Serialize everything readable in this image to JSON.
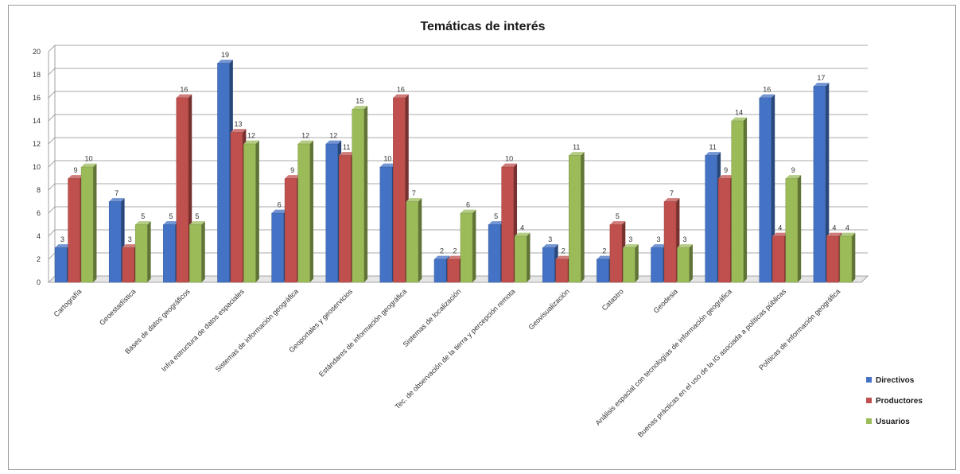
{
  "chart_data": {
    "type": "bar",
    "title": "Temáticas de interés",
    "categories": [
      "Cartografía",
      "Geoestadística",
      "Bases de datos geográficos",
      "Infra estructura de datos espaciales",
      "Sistemas de información geográfica",
      "Geoportales y geoservicios",
      "Estándares de información geográfica",
      "Sistemas de localización",
      "Tec. de observación de la tierra y percepción remota",
      "Geovisualización",
      "Catastro",
      "Geodesia",
      "Análisis espacial con tecnologías de información geográfica",
      "Buenas prácticas en el uso de la IG asociada a políticas públicas",
      "Políticas de información geográfica"
    ],
    "series": [
      {
        "name": "Directivos",
        "color": "#4472C4",
        "values": [
          3,
          7,
          5,
          19,
          6,
          12,
          10,
          2,
          5,
          3,
          2,
          3,
          11,
          16,
          17
        ]
      },
      {
        "name": "Productores",
        "color": "#C0504D",
        "values": [
          9,
          3,
          16,
          13,
          9,
          11,
          16,
          2,
          10,
          2,
          5,
          7,
          9,
          4,
          4
        ]
      },
      {
        "name": "Usuarios",
        "color": "#9BBB59",
        "values": [
          10,
          5,
          5,
          12,
          12,
          15,
          7,
          6,
          4,
          11,
          3,
          3,
          14,
          9,
          4
        ]
      }
    ],
    "yticks": [
      "0",
      "2",
      "4",
      "6",
      "8",
      "10",
      "12",
      "14",
      "16",
      "18",
      "20"
    ],
    "ylim": [
      0,
      20
    ],
    "grid": true,
    "legend": "right"
  }
}
